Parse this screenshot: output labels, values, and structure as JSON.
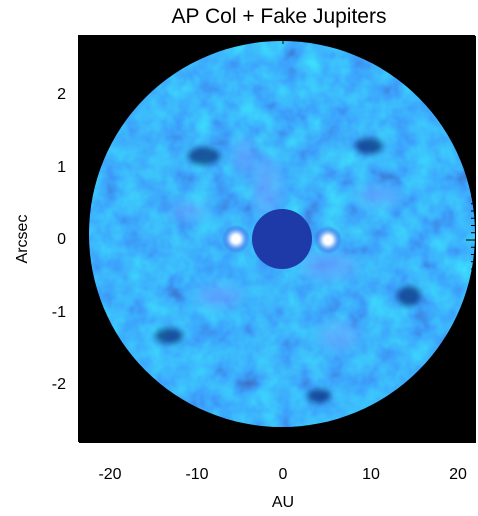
{
  "figure": {
    "title": "AP Col + Fake Jupiters",
    "y_axis_label": "Arcsec",
    "x_axis_label": "AU",
    "y_tick_labels": [
      "2",
      "1",
      "0",
      "-1",
      "-2"
    ],
    "x_tick_labels": [
      "-20",
      "-10",
      "0",
      "10",
      "20"
    ]
  },
  "image": {
    "colormap_dark": "#0a1a7a",
    "colormap_mid": "#1f50d6",
    "colormap_bright": "#9cc8ff",
    "background": "#000000",
    "features": [
      "occulted-star-mask",
      "fake-planet-left",
      "fake-planet-right",
      "speckle-noise-disk"
    ]
  }
}
